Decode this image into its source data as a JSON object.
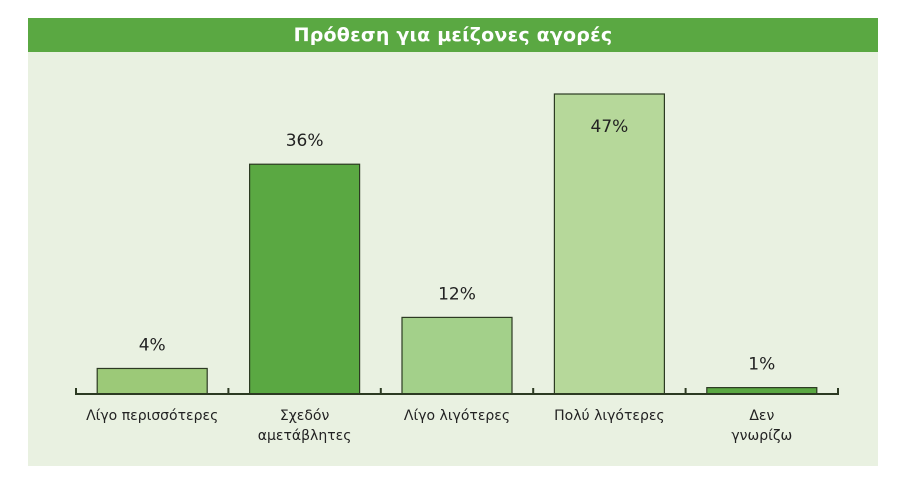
{
  "chart_data": {
    "type": "bar",
    "title": "Πρόθεση για μείζονες αγορές",
    "xlabel": "",
    "ylabel": "",
    "categories": [
      [
        "Λίγο περισσότερες"
      ],
      [
        "Σχεδόν",
        "αμετάβλητες"
      ],
      [
        "Λίγο λιγότερες"
      ],
      [
        "Πολύ λιγότερες"
      ],
      [
        "Δεν",
        "γνωρίζω"
      ]
    ],
    "values": [
      4,
      36,
      12,
      47,
      1
    ],
    "value_labels": [
      "4%",
      "36%",
      "12%",
      "47%",
      "1%"
    ],
    "ylim": [
      0,
      47
    ],
    "grid": false,
    "colors": [
      "#9cc978",
      "#5aa842",
      "#a3d08a",
      "#b6d89a",
      "#5aa842"
    ]
  }
}
